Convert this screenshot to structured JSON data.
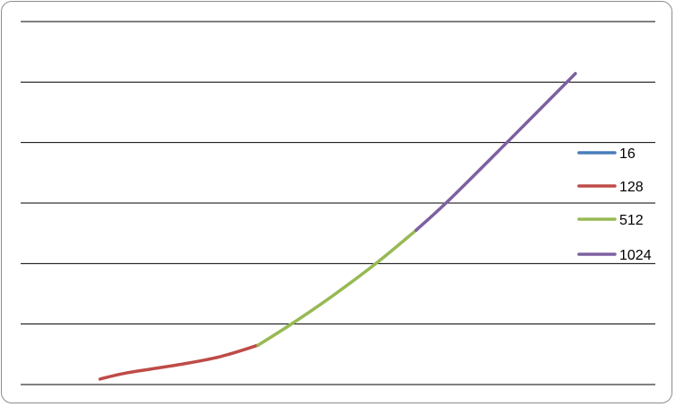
{
  "chart_data": {
    "type": "line",
    "title": "",
    "xlabel": "",
    "ylabel": "",
    "xlim": [
      0,
      10
    ],
    "ylim": [
      0,
      6
    ],
    "grid": true,
    "legend_position": "right",
    "series": [
      {
        "name": "16",
        "color": "#4a7ebb",
        "x": [],
        "y": []
      },
      {
        "name": "128",
        "color": "#be4b48",
        "x": [
          1.25,
          1.66,
          2.5,
          3.14,
          3.74
        ],
        "y": [
          0.09,
          0.19,
          0.33,
          0.46,
          0.65
        ]
      },
      {
        "name": "512",
        "color": "#98b954",
        "x": [
          3.74,
          4.28,
          4.92,
          5.62,
          6.23
        ],
        "y": [
          0.65,
          1.01,
          1.47,
          2.02,
          2.55
        ]
      },
      {
        "name": "1024",
        "color": "#7d60a0",
        "x": [
          6.23,
          6.76,
          7.68,
          8.74
        ],
        "y": [
          2.55,
          3.06,
          4.02,
          5.14
        ]
      }
    ]
  }
}
